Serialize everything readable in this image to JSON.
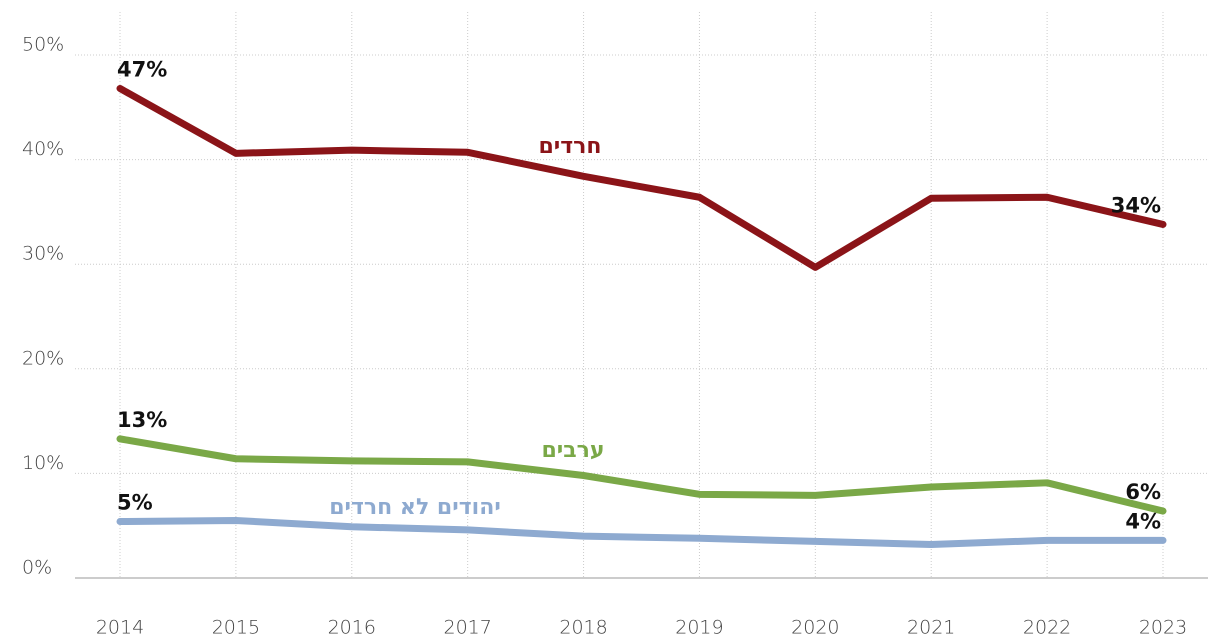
{
  "chart_data": {
    "type": "line",
    "categories": [
      "2014",
      "2015",
      "2016",
      "2017",
      "2018",
      "2019",
      "2020",
      "2021",
      "2022",
      "2023"
    ],
    "series": [
      {
        "name": "חרדים",
        "color": "#8b1418",
        "values": [
          46.8,
          40.6,
          40.9,
          40.7,
          38.4,
          36.4,
          29.7,
          36.3,
          36.4,
          33.8
        ],
        "value_labels": [
          "47%",
          null,
          null,
          null,
          null,
          null,
          null,
          null,
          null,
          "34%"
        ]
      },
      {
        "name": "ערבים",
        "color": "#7aa847",
        "values": [
          13.3,
          11.4,
          11.2,
          11.1,
          9.8,
          8.0,
          7.9,
          8.7,
          9.1,
          6.4
        ],
        "value_labels": [
          "13%",
          null,
          null,
          null,
          null,
          null,
          null,
          null,
          null,
          "6%"
        ]
      },
      {
        "name": "יהודים לא חרדים",
        "color": "#8eaad0",
        "values": [
          5.4,
          5.5,
          4.9,
          4.6,
          4.0,
          3.8,
          3.5,
          3.2,
          3.6,
          3.6
        ],
        "value_labels": [
          "5%",
          null,
          null,
          null,
          null,
          null,
          null,
          null,
          null,
          "4%"
        ]
      }
    ],
    "ylim": [
      0,
      50
    ],
    "yticks": [
      {
        "value": 0,
        "label": "0%"
      },
      {
        "value": 10,
        "label": "10%"
      },
      {
        "value": 20,
        "label": "20%"
      },
      {
        "value": 30,
        "label": "30%"
      },
      {
        "value": 40,
        "label": "40%"
      },
      {
        "value": 50,
        "label": "50%"
      }
    ],
    "grid": true
  }
}
